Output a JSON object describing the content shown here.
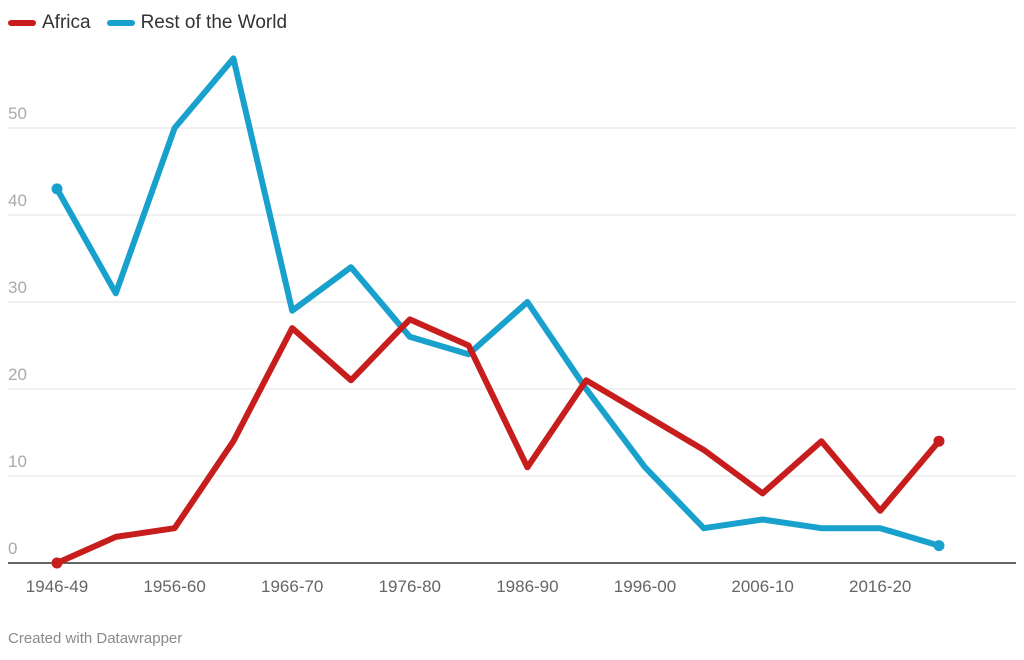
{
  "chart_data": {
    "type": "line",
    "title": "",
    "xlabel": "",
    "ylabel": "",
    "ylim": [
      0,
      60
    ],
    "yticks": [
      0,
      10,
      20,
      30,
      40,
      50
    ],
    "grid": true,
    "legend_position": "top-left",
    "categories": [
      "1946-49",
      "",
      "1956-60",
      "",
      "1966-70",
      "",
      "1976-80",
      "",
      "1986-90",
      "",
      "1996-00",
      "",
      "2006-10",
      "",
      "2016-20",
      ""
    ],
    "series": [
      {
        "name": "Africa",
        "color": "#c71e1d",
        "values": [
          0,
          3,
          4,
          14,
          27,
          21,
          28,
          25,
          11,
          21,
          17,
          13,
          8,
          14,
          6,
          14
        ]
      },
      {
        "name": "Rest of the World",
        "color": "#18a1cd",
        "values": [
          43,
          31,
          50,
          58,
          29,
          34,
          26,
          24,
          30,
          20,
          11,
          4,
          5,
          4,
          4,
          2
        ]
      }
    ]
  },
  "footer": "Created with Datawrapper"
}
